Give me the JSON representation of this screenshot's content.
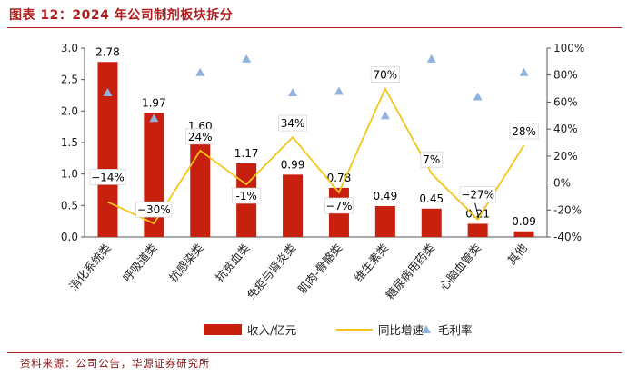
{
  "title": "图表 12：2024 年公司制剂板块拆分",
  "source": "资料来源：公司公告，华源证券研究所",
  "chart_data": {
    "type": "bar",
    "categories": [
      "消化系统类",
      "呼吸道类",
      "抗感染类",
      "抗贫血类",
      "免疫与肾炎类",
      "肌肉-骨骼类",
      "维生素类",
      "糖尿病用药类",
      "心脑血管类",
      "其他"
    ],
    "series": [
      {
        "name": "收入/亿元",
        "type": "bar",
        "axis": "left",
        "color": "#c8200f",
        "values": [
          2.78,
          1.97,
          1.6,
          1.17,
          0.99,
          0.78,
          0.49,
          0.45,
          0.21,
          0.09
        ],
        "labels": [
          "2.78",
          "1.97",
          "1.60",
          "1.17",
          "0.99",
          "0.78",
          "0.49",
          "0.45",
          "0.21",
          "0.09"
        ]
      },
      {
        "name": "同比增速",
        "type": "line",
        "axis": "right",
        "color": "#f5c518",
        "values": [
          -14,
          -30,
          24,
          -1,
          34,
          -7,
          70,
          7,
          -27,
          28
        ],
        "labels": [
          "−14%",
          "−30%",
          "24%",
          "-1%",
          "34%",
          "−7%",
          "70%",
          "7%",
          "−27%",
          "28%"
        ]
      },
      {
        "name": "毛利率",
        "type": "scatter",
        "axis": "right",
        "color": "#8fb3de",
        "values": [
          67,
          48,
          82,
          92,
          67,
          68,
          50,
          92,
          64,
          82
        ]
      }
    ],
    "y_left": {
      "min": 0,
      "max": 3.0,
      "ticks": [
        "0.0",
        "0.5",
        "1.0",
        "1.5",
        "2.0",
        "2.5",
        "3.0"
      ]
    },
    "y_right": {
      "min": -40,
      "max": 100,
      "ticks": [
        "-40%",
        "-20%",
        "0%",
        "20%",
        "40%",
        "60%",
        "80%",
        "100%"
      ]
    },
    "grid": false,
    "legend": "bottom"
  }
}
